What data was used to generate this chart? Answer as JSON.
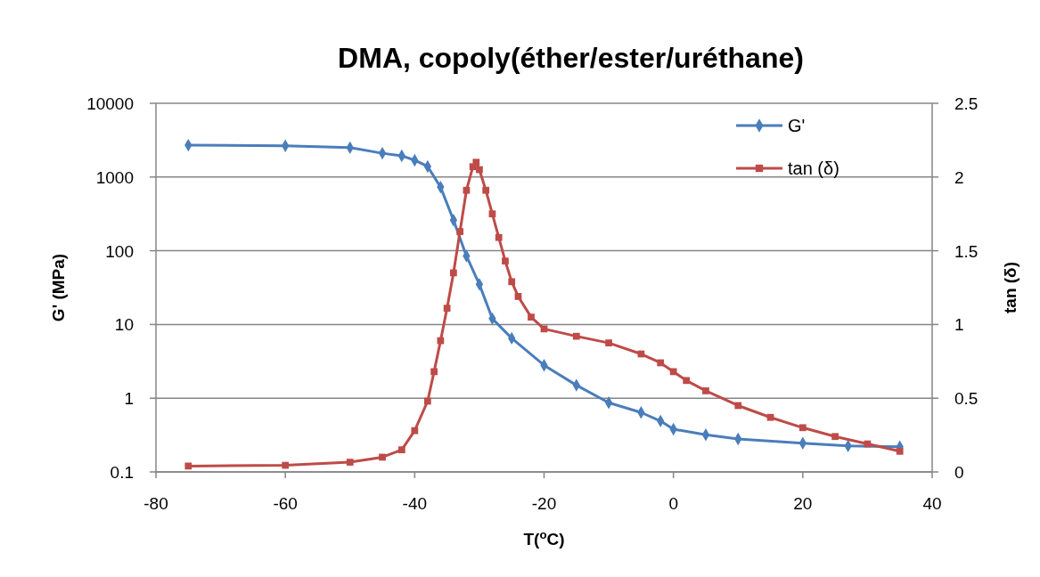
{
  "chart_data": {
    "type": "line",
    "title": "DMA, copoly(éther/ester/uréthane)",
    "xlabel": "T($^{o}$C)",
    "ylabel": "G' (MPa)",
    "y2label": "tan (δ)",
    "xlim": [
      -80,
      40
    ],
    "xticks": [
      -80,
      -60,
      -40,
      -20,
      0,
      20,
      40
    ],
    "ylim": [
      0.1,
      10000
    ],
    "yticks": [
      0.1,
      1,
      10,
      100,
      1000,
      10000
    ],
    "log": "y",
    "y2lim": [
      0,
      2.5
    ],
    "y2ticks": [
      0,
      0.5,
      1,
      1.5,
      2,
      2.5
    ],
    "grid": "y",
    "legend": "top right",
    "line_style": "solid",
    "series": [
      {
        "name": "G'",
        "color": "#4a7ebb",
        "marker": "diamond",
        "x": [
          -75,
          -60,
          -50,
          -45,
          -42,
          -40,
          -38,
          -36,
          -34,
          -32,
          -30,
          -28,
          -25,
          -20,
          -15,
          -10,
          -5,
          -2,
          0,
          5,
          10,
          20,
          27,
          35
        ],
        "values": [
          2700,
          2650,
          2500,
          2100,
          1940,
          1690,
          1390,
          730,
          260,
          85,
          35,
          12,
          6.5,
          2.8,
          1.5,
          0.87,
          0.64,
          0.49,
          0.38,
          0.32,
          0.28,
          0.245,
          0.225,
          0.22
        ]
      },
      {
        "name": "tan (δ)",
        "color": "#be4b48",
        "marker": "square",
        "axis": "y2",
        "x": [
          -75,
          -60,
          -50,
          -45,
          -42,
          -40,
          -38,
          -37,
          -36,
          -35,
          -34,
          -33,
          -32,
          -31,
          -30.5,
          -30,
          -29,
          -28,
          -27,
          -26,
          -25,
          -24,
          -22,
          -20,
          -15,
          -10,
          -5,
          -2,
          0,
          2,
          5,
          10,
          15,
          20,
          25,
          30,
          35
        ],
        "values": [
          0.04,
          0.045,
          0.066,
          0.1,
          0.15,
          0.28,
          0.48,
          0.68,
          0.89,
          1.11,
          1.35,
          1.63,
          1.91,
          2.07,
          2.1,
          2.05,
          1.91,
          1.75,
          1.59,
          1.43,
          1.29,
          1.19,
          1.05,
          0.97,
          0.92,
          0.875,
          0.8,
          0.74,
          0.68,
          0.62,
          0.55,
          0.45,
          0.37,
          0.3,
          0.24,
          0.19,
          0.14
        ]
      }
    ]
  }
}
